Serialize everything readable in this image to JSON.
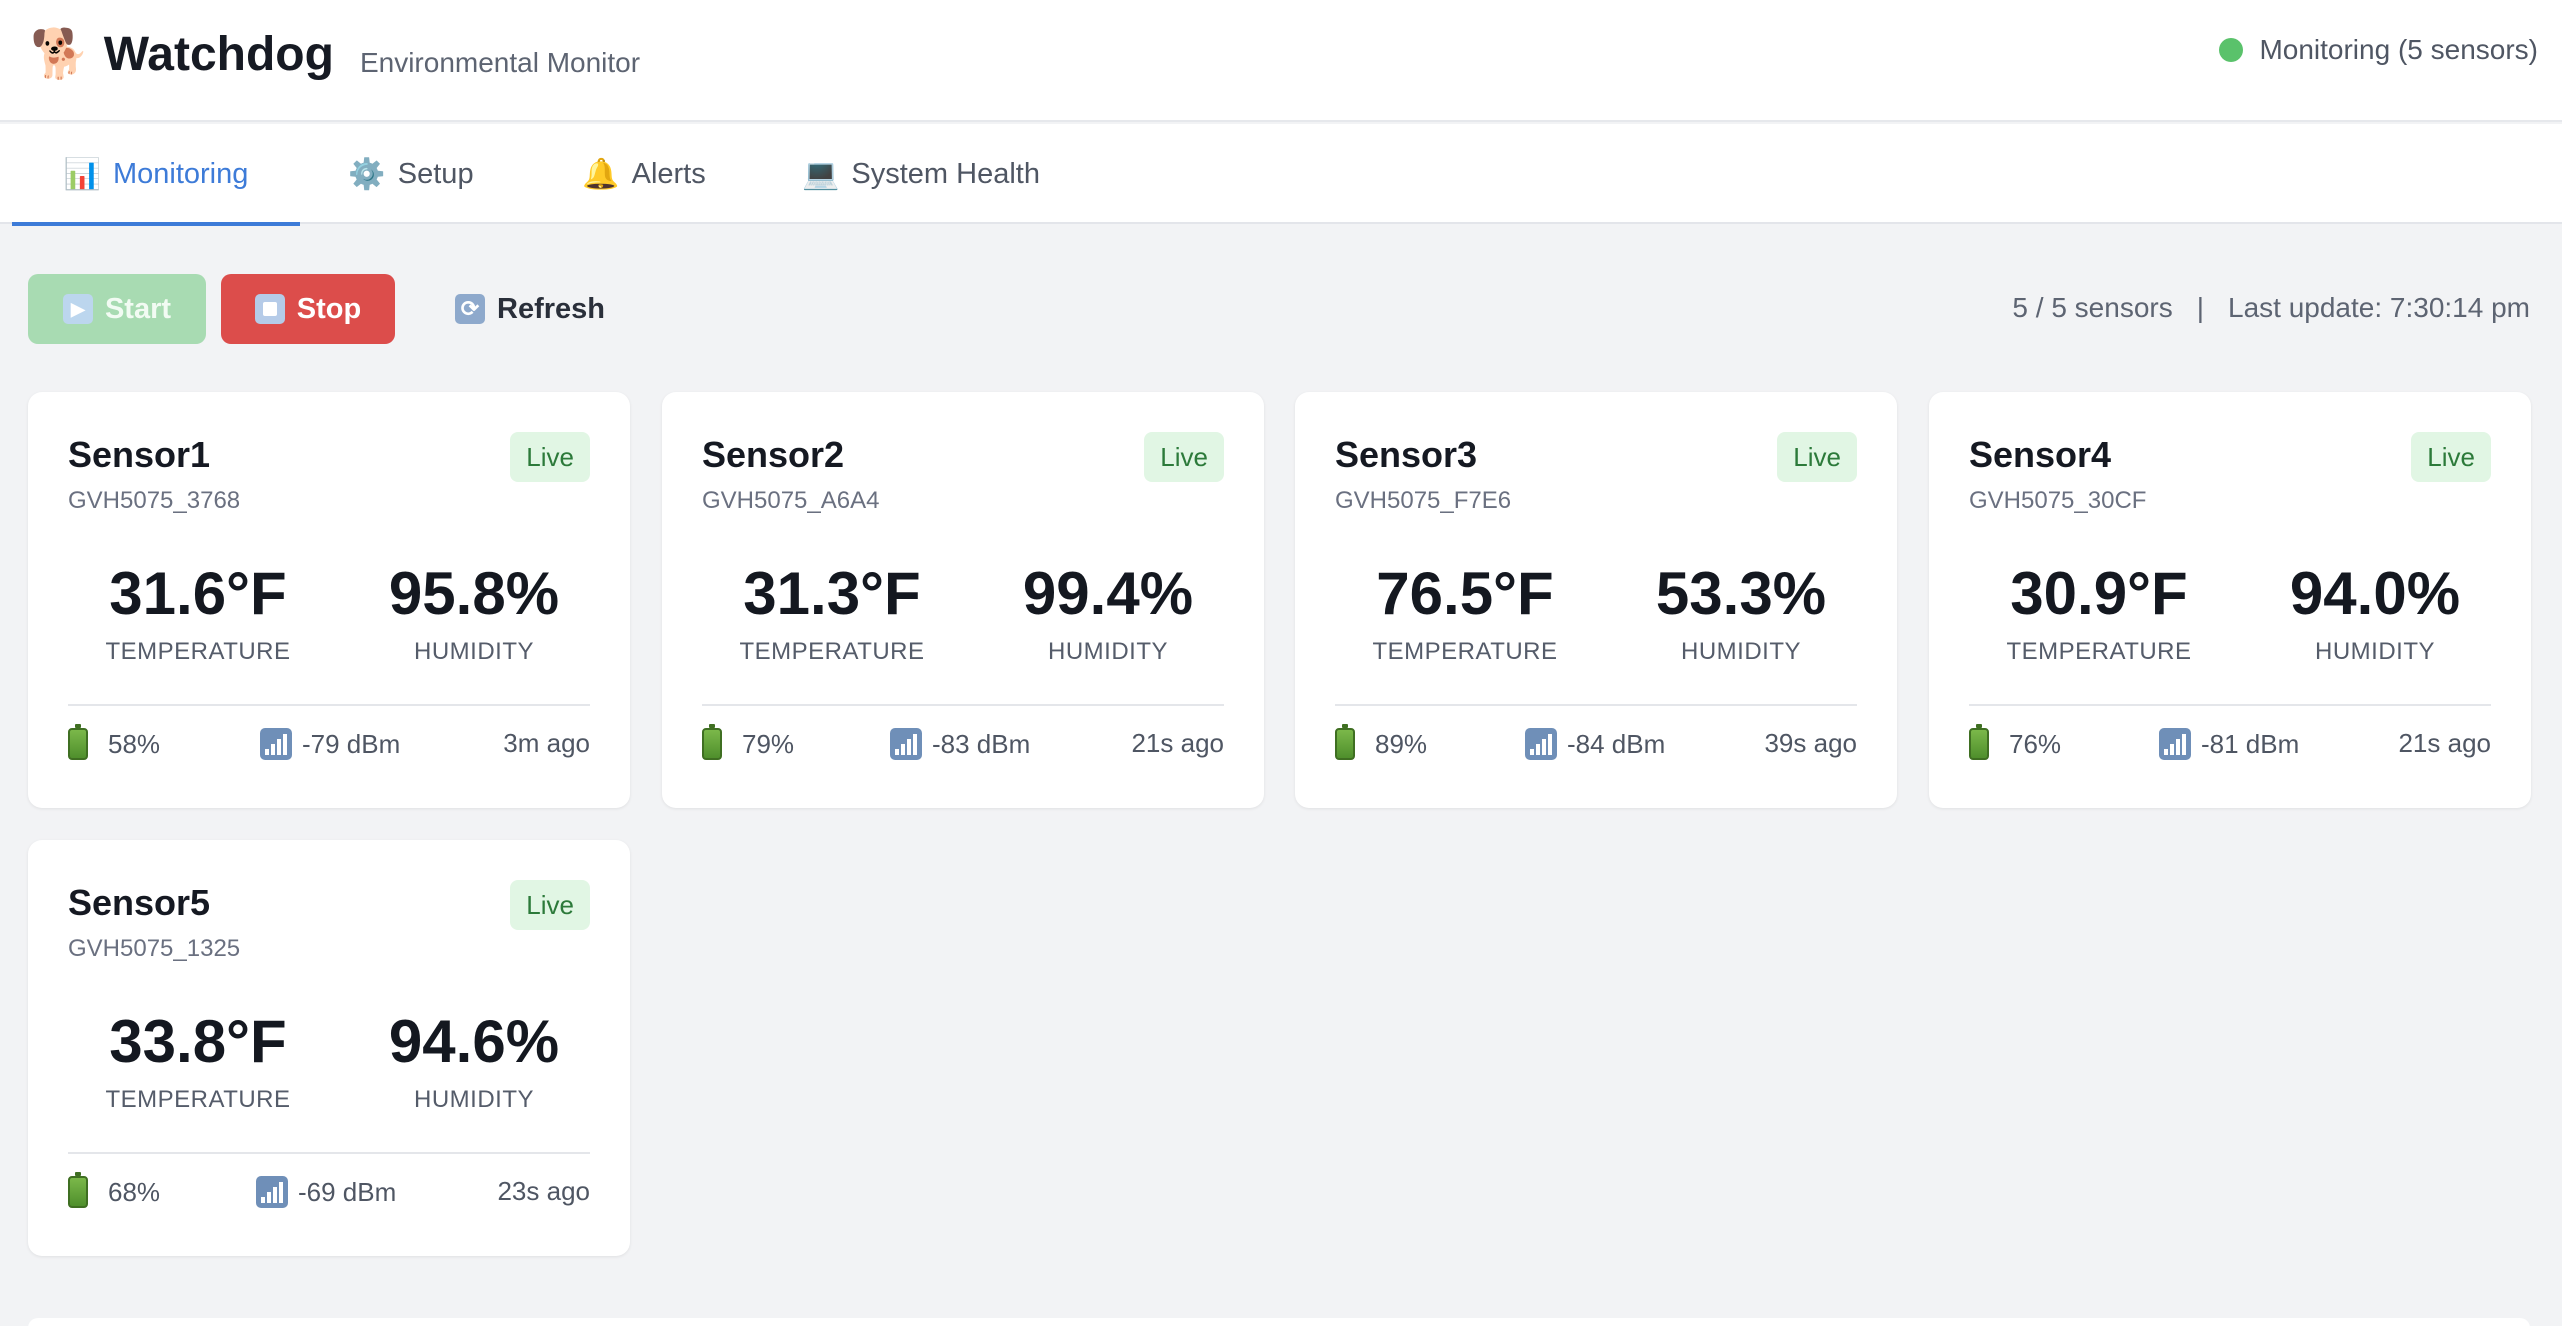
{
  "app": {
    "logo_emoji": "🐕",
    "title": "Watchdog",
    "subtitle": "Environmental Monitor",
    "status_text": "Monitoring (5 sensors)",
    "status_color": "#5ac26b"
  },
  "tabs": [
    {
      "icon": "📊",
      "label": "Monitoring",
      "active": true
    },
    {
      "icon": "⚙️",
      "label": "Setup",
      "active": false
    },
    {
      "icon": "🔔",
      "label": "Alerts",
      "active": false
    },
    {
      "icon": "💻",
      "label": "System Health",
      "active": false
    }
  ],
  "toolbar": {
    "start_label": "Start",
    "stop_label": "Stop",
    "refresh_label": "Refresh",
    "sensor_count": "5 / 5 sensors",
    "separator": "|",
    "last_update": "Last update: 7:30:14 pm"
  },
  "metric_labels": {
    "temperature": "TEMPERATURE",
    "humidity": "HUMIDITY"
  },
  "sensors": [
    {
      "name": "Sensor1",
      "mac": "GVH5075_3768",
      "badge": "Live",
      "temperature": "31.6°F",
      "humidity": "95.8%",
      "battery": "58%",
      "signal": "-79 dBm",
      "ago": "3m ago"
    },
    {
      "name": "Sensor2",
      "mac": "GVH5075_A6A4",
      "badge": "Live",
      "temperature": "31.3°F",
      "humidity": "99.4%",
      "battery": "79%",
      "signal": "-83 dBm",
      "ago": "21s ago"
    },
    {
      "name": "Sensor3",
      "mac": "GVH5075_F7E6",
      "badge": "Live",
      "temperature": "76.5°F",
      "humidity": "53.3%",
      "battery": "89%",
      "signal": "-84 dBm",
      "ago": "39s ago"
    },
    {
      "name": "Sensor4",
      "mac": "GVH5075_30CF",
      "badge": "Live",
      "temperature": "30.9°F",
      "humidity": "94.0%",
      "battery": "76%",
      "signal": "-81 dBm",
      "ago": "21s ago"
    },
    {
      "name": "Sensor5",
      "mac": "GVH5075_1325",
      "badge": "Live",
      "temperature": "33.8°F",
      "humidity": "94.6%",
      "battery": "68%",
      "signal": "-69 dBm",
      "ago": "23s ago"
    }
  ],
  "colors": {
    "accent": "#3d7bd8",
    "stop": "#dc4d4b",
    "start": "#a8dbb2",
    "live_badge_bg": "#e1f6e4"
  }
}
